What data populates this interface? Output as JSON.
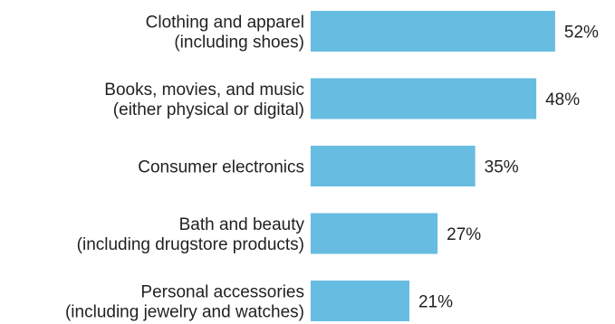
{
  "chart_data": {
    "type": "bar",
    "orientation": "horizontal",
    "categories": [
      [
        "Clothing and apparel",
        "(including shoes)"
      ],
      [
        "Books, movies, and music",
        "(either physical or digital)"
      ],
      [
        "Consumer electronics"
      ],
      [
        "Bath and beauty",
        "(including drugstore products)"
      ],
      [
        "Personal accessories",
        "(including jewelry and watches)"
      ]
    ],
    "values": [
      52,
      48,
      35,
      27,
      21
    ],
    "value_labels": [
      "52%",
      "48%",
      "35%",
      "27%",
      "21%"
    ],
    "xlim": [
      0,
      100
    ],
    "grid": false,
    "bar_color": "#67bce2",
    "text_color": "#231f20"
  }
}
